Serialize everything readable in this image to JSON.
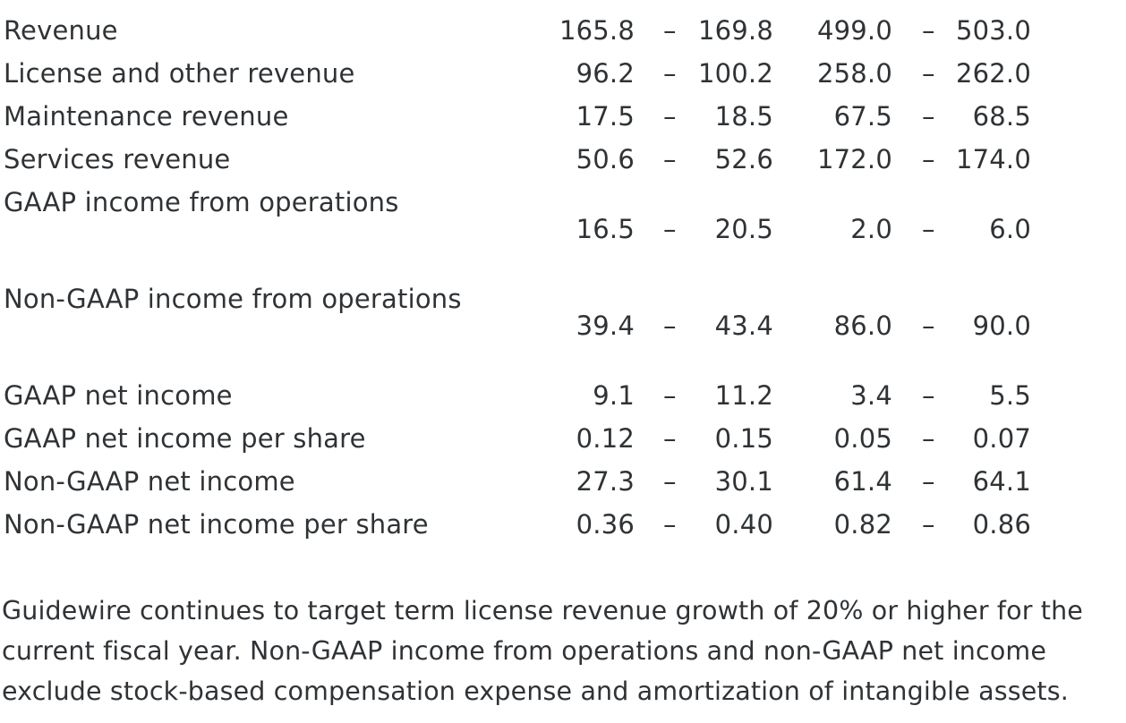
{
  "table": {
    "rows": [
      {
        "label": "Revenue",
        "q_low": "165.8",
        "q_sep": "–",
        "q_high": "169.8",
        "fy_low": "499.0",
        "fy_sep": "–",
        "fy_high": "503.0"
      },
      {
        "label": "License and other revenue",
        "q_low": "96.2",
        "q_sep": "–",
        "q_high": "100.2",
        "fy_low": "258.0",
        "fy_sep": "–",
        "fy_high": "262.0"
      },
      {
        "label": "Maintenance revenue",
        "q_low": "17.5",
        "q_sep": "–",
        "q_high": "18.5",
        "fy_low": "67.5",
        "fy_sep": "–",
        "fy_high": "68.5"
      },
      {
        "label": "Services revenue",
        "q_low": "50.6",
        "q_sep": "–",
        "q_high": "52.6",
        "fy_low": "172.0",
        "fy_sep": "–",
        "fy_high": "174.0"
      },
      {
        "label": "GAAP income from operations",
        "q_low": "16.5",
        "q_sep": "–",
        "q_high": "20.5",
        "fy_low": "2.0",
        "fy_sep": "–",
        "fy_high": "6.0"
      },
      {
        "label": "Non-GAAP income from operations",
        "q_low": "39.4",
        "q_sep": "–",
        "q_high": "43.4",
        "fy_low": "86.0",
        "fy_sep": "–",
        "fy_high": "90.0"
      },
      {
        "label": "GAAP net income",
        "q_low": "9.1",
        "q_sep": "–",
        "q_high": "11.2",
        "fy_low": "3.4",
        "fy_sep": "–",
        "fy_high": "5.5"
      },
      {
        "label": "GAAP net income per share",
        "q_low": "0.12",
        "q_sep": "–",
        "q_high": "0.15",
        "fy_low": "0.05",
        "fy_sep": "–",
        "fy_high": "0.07"
      },
      {
        "label": "Non-GAAP net income",
        "q_low": "27.3",
        "q_sep": "–",
        "q_high": "30.1",
        "fy_low": "61.4",
        "fy_sep": "–",
        "fy_high": "64.1"
      },
      {
        "label": "Non-GAAP net income per share",
        "q_low": "0.36",
        "q_sep": "–",
        "q_high": "0.40",
        "fy_low": "0.82",
        "fy_sep": "–",
        "fy_high": "0.86"
      }
    ]
  },
  "note": {
    "lines": [
      "Guidewire continues to target term license revenue growth of 20% or higher for the",
      "current fiscal year. Non-GAAP income from operations and non-GAAP net income",
      "exclude stock-based compensation expense and amortization of intangible assets."
    ]
  }
}
